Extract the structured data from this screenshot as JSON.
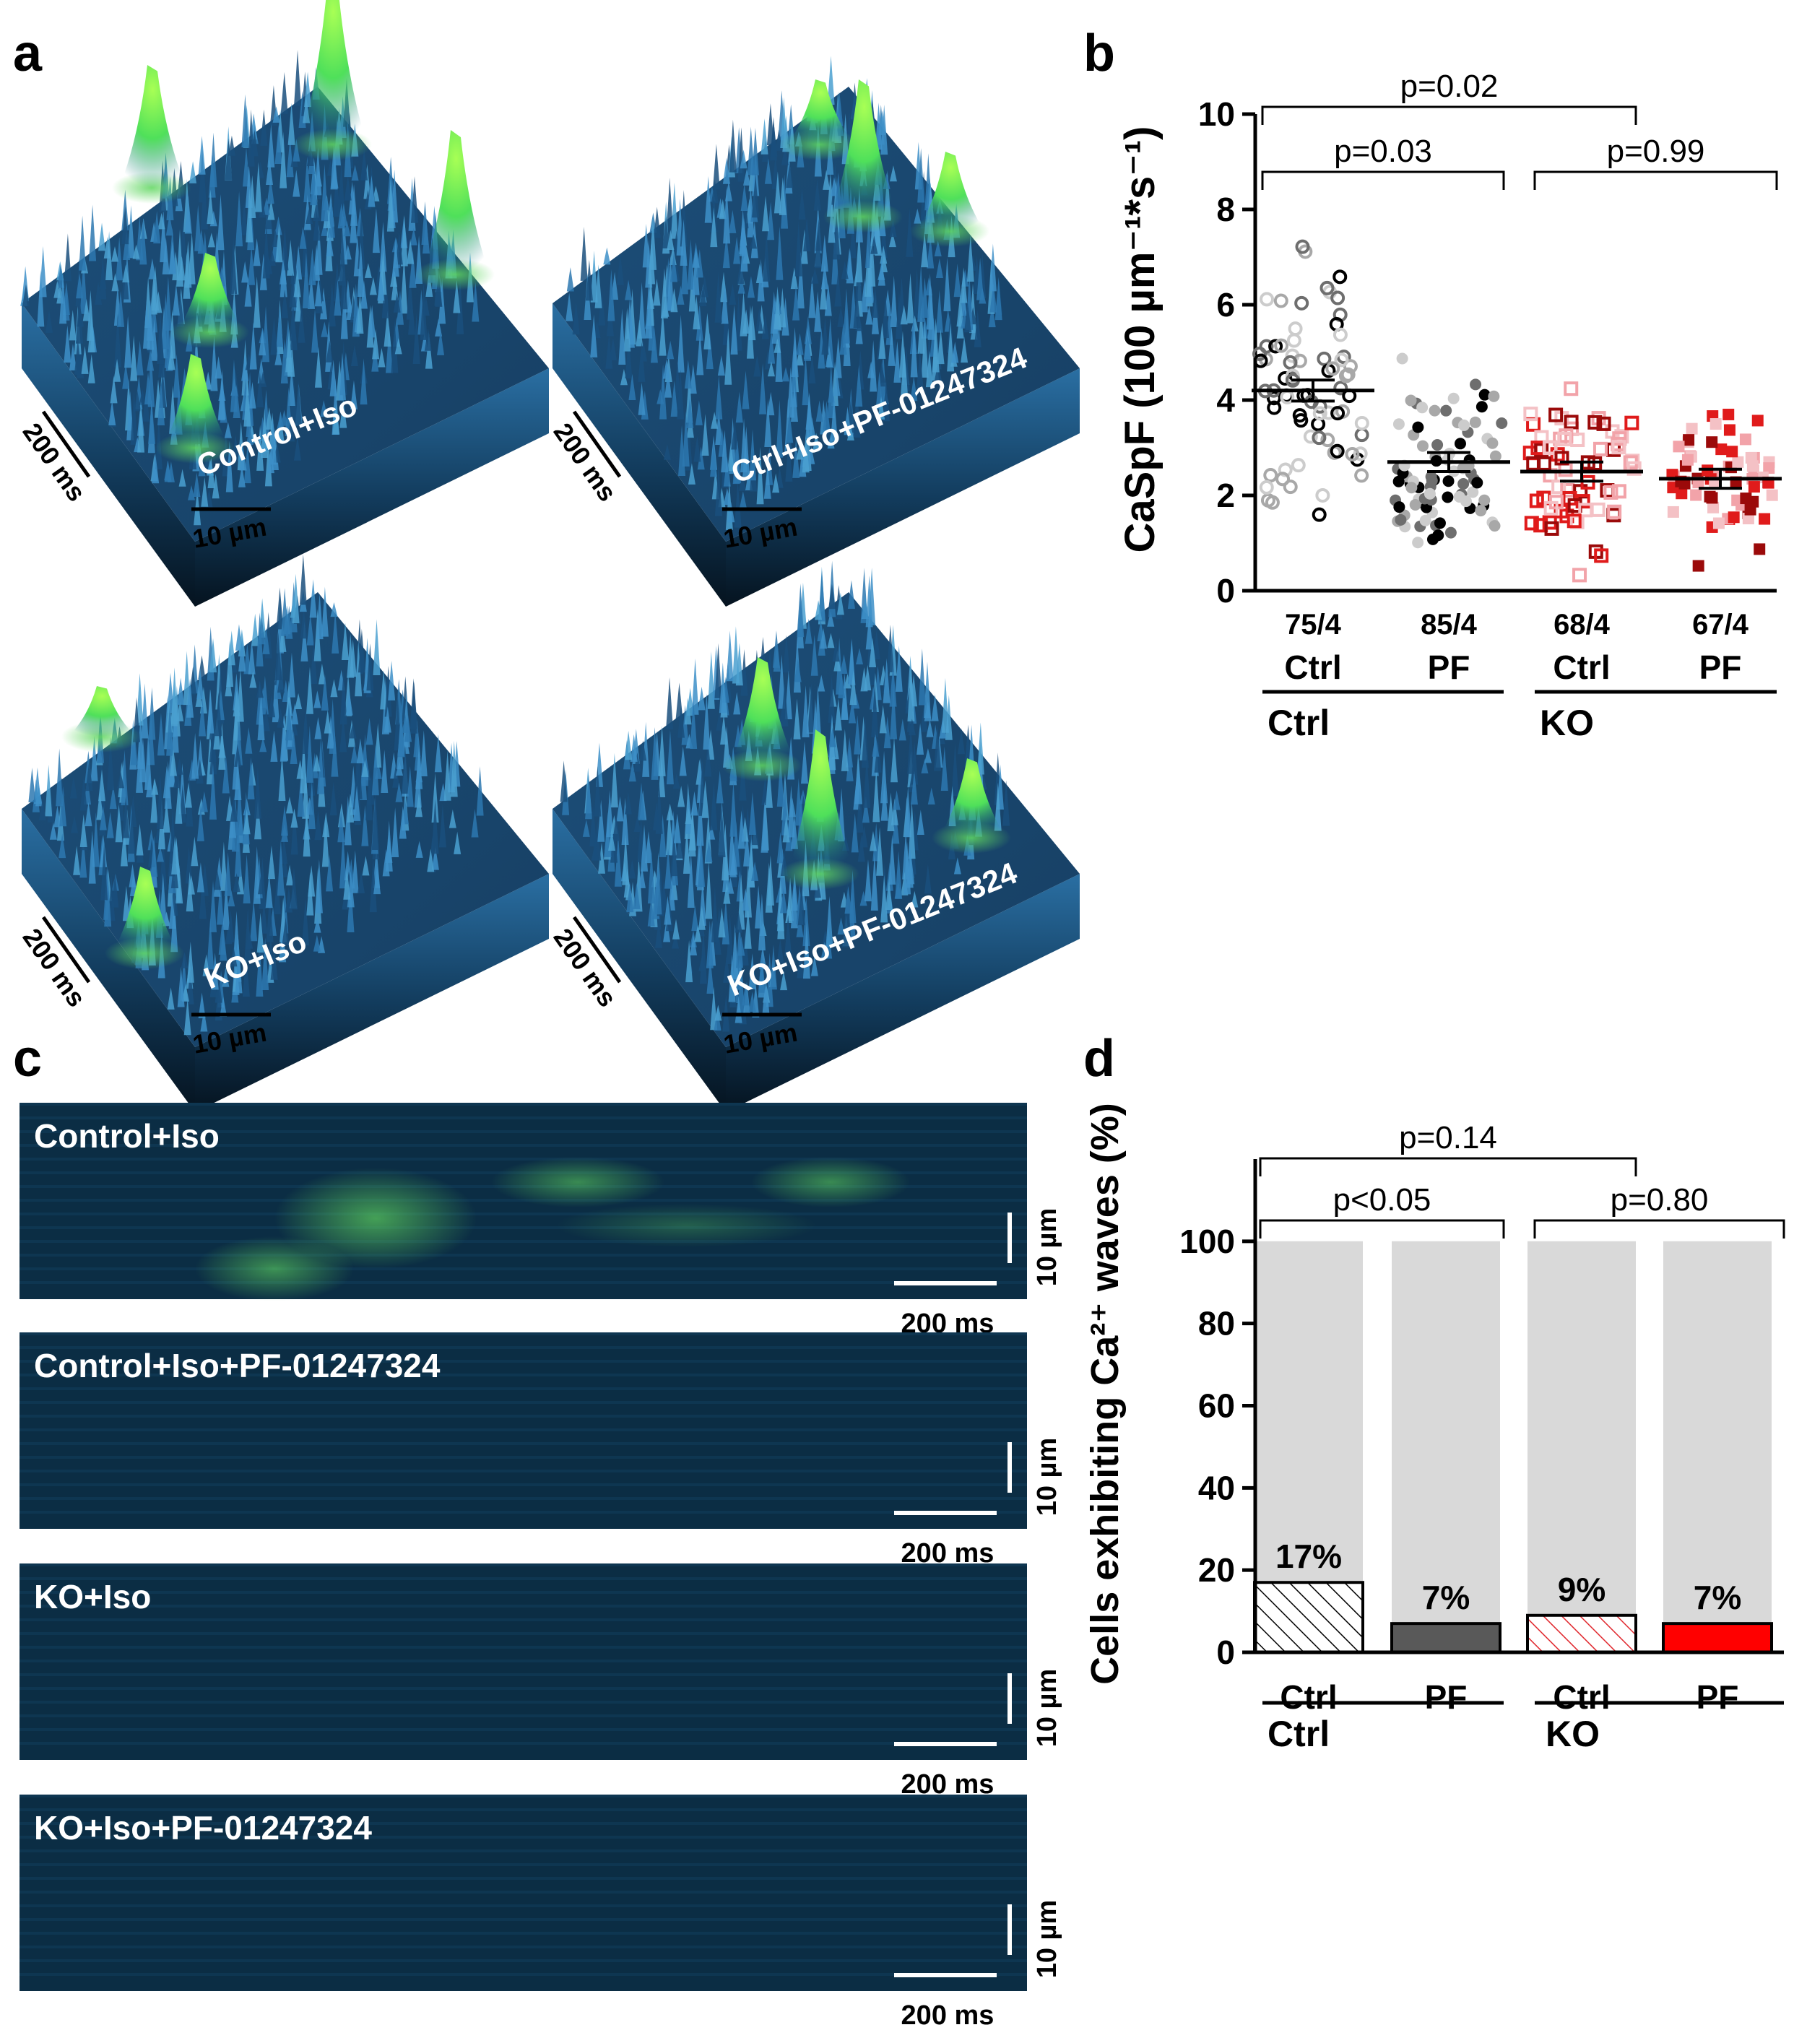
{
  "panel_labels": {
    "a": "a",
    "b": "b",
    "c": "c",
    "d": "d"
  },
  "colors": {
    "surface_dark": "#0a2436",
    "surface_mid": "#1f5a86",
    "surface_light": "#2f7ab0",
    "peak_green": "#6dff4c",
    "linescan_bg": "#0b2d44",
    "linescan_green": "#57c85a",
    "ctrl_black": "#000000",
    "ctrl_gray": "#7a7a7a",
    "ctrl_light": "#c4c4c4",
    "ko_dark": "#9b0a0a",
    "ko_red": "#e01b1b",
    "ko_pink": "#f2a3a9",
    "bar_bg": "#d9d9d9",
    "bar_pf_ctrl": "#595959",
    "bar_pf_ko": "#ff0000",
    "hatch_red": "#e0262c"
  },
  "panel_a": {
    "surfaces": [
      {
        "label": "Control+Iso",
        "time_scale": "200 ms",
        "space_scale": "10 µm"
      },
      {
        "label": "Ctrl+Iso+PF-01247324",
        "time_scale": "200 ms",
        "space_scale": "10 µm"
      },
      {
        "label": "KO+Iso",
        "time_scale": "200 ms",
        "space_scale": "10 µm"
      },
      {
        "label": "KO+Iso+PF-01247324",
        "time_scale": "200 ms",
        "space_scale": "10 µm"
      }
    ]
  },
  "panel_c": {
    "linescans": [
      {
        "label": "Control+Iso",
        "space_scale": "10 µm",
        "time_scale": "200 ms"
      },
      {
        "label": "Control+Iso+PF-01247324",
        "space_scale": "10 µm",
        "time_scale": "200 ms"
      },
      {
        "label": "KO+Iso",
        "space_scale": "10 µm",
        "time_scale": "200 ms"
      },
      {
        "label": "KO+Iso+PF-01247324",
        "space_scale": "10 µm",
        "time_scale": "200 ms"
      }
    ]
  },
  "chart_data": [
    {
      "id": "b",
      "type": "scatter",
      "ylabel": "CaSpF (100 µm⁻¹*s⁻¹)",
      "ylim": [
        0,
        10
      ],
      "yticks": [
        0,
        2,
        4,
        6,
        8,
        10
      ],
      "groups": [
        {
          "name": "Ctrl",
          "condition": "Ctrl",
          "n": "75/4",
          "mean": 4.2,
          "sem": 0.22,
          "marker": "open-circle"
        },
        {
          "name": "PF",
          "condition": "Ctrl",
          "n": "85/4",
          "mean": 2.7,
          "sem": 0.2,
          "marker": "filled-circle"
        },
        {
          "name": "Ctrl",
          "condition": "KO",
          "n": "68/4",
          "mean": 2.5,
          "sem": 0.2,
          "marker": "open-square"
        },
        {
          "name": "PF",
          "condition": "KO",
          "n": "67/4",
          "mean": 2.35,
          "sem": 0.2,
          "marker": "filled-square"
        }
      ],
      "group_labels": [
        "Ctrl",
        "KO"
      ],
      "comparisons": [
        {
          "from": 0,
          "to": 2,
          "label": "p=0.02"
        },
        {
          "from": 0,
          "to": 1,
          "label": "p=0.03"
        },
        {
          "from": 2,
          "to": 3,
          "label": "p=0.99"
        }
      ]
    },
    {
      "id": "d",
      "type": "bar",
      "ylabel": "Cells exhibiting Ca²⁺ waves (%)",
      "ylim": [
        0,
        120
      ],
      "yticks": [
        0,
        20,
        40,
        60,
        80,
        100
      ],
      "categories": [
        "Ctrl",
        "PF",
        "Ctrl",
        "PF"
      ],
      "group_labels": [
        "Ctrl",
        "KO"
      ],
      "values": [
        17,
        7,
        9,
        7
      ],
      "value_labels": [
        "17%",
        "7%",
        "9%",
        "7%"
      ],
      "total": 100,
      "comparisons": [
        {
          "from": 0,
          "to": 2,
          "label": "p=0.14"
        },
        {
          "from": 0,
          "to": 1,
          "label": "p<0.05"
        },
        {
          "from": 2,
          "to": 3,
          "label": "p=0.80"
        }
      ]
    }
  ]
}
